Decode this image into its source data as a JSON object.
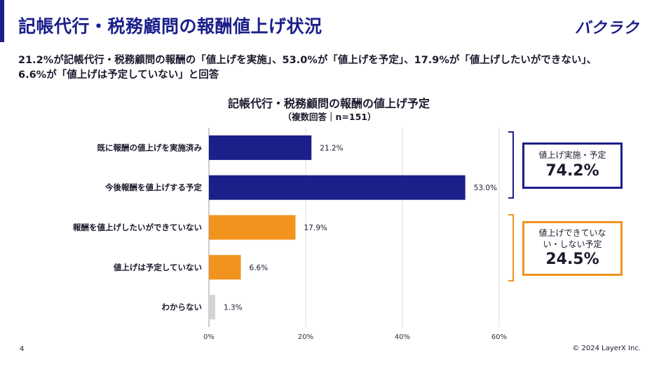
{
  "header": {
    "title": "記帳代行・税務顧問の報酬値上げ状況",
    "logo_text": "バクラク"
  },
  "summary": {
    "line1": "21.2%が記帳代行・税務顧問の報酬の「値上げを実施」、53.0%が「値上げを予定」、17.9%が「値上げしたいができない」、",
    "line2": "6.6%が「値上げは予定していない」と回答"
  },
  "chart_data": {
    "type": "bar",
    "orientation": "horizontal",
    "title": "記帳代行・税務顧問の報酬の値上げ予定",
    "subtitle": "（複数回答｜n=151）",
    "categories": [
      "既に報酬の値上げを実施済み",
      "今後報酬を値上げする予定",
      "報酬を値上げしたいができていない",
      "値上げは予定していない",
      "わからない"
    ],
    "values": [
      21.2,
      53.0,
      17.9,
      6.6,
      1.3
    ],
    "data_labels": [
      "21.2%",
      "53.0%",
      "17.9%",
      "6.6%",
      "1.3%"
    ],
    "bar_colors": [
      "#1b1f8a",
      "#1b1f8a",
      "#f2931e",
      "#f2931e",
      "#d4d4d4"
    ],
    "xlim": [
      0,
      60
    ],
    "xticks": [
      0,
      20,
      40,
      60
    ],
    "xtick_labels": [
      "0%",
      "20%",
      "40%",
      "60%"
    ],
    "grid": true,
    "xlabel": "",
    "ylabel": ""
  },
  "callouts": {
    "raise": {
      "label": "値上げ実施・予定",
      "value": "74.2%",
      "color": "#1b1f8a"
    },
    "no_raise": {
      "label_line1": "値上げできていな",
      "label_line2": "い・しない予定",
      "value": "24.5%",
      "color": "#f2931e"
    }
  },
  "footer": {
    "page_number": "4",
    "copyright": "© 2024 LayerX Inc."
  }
}
